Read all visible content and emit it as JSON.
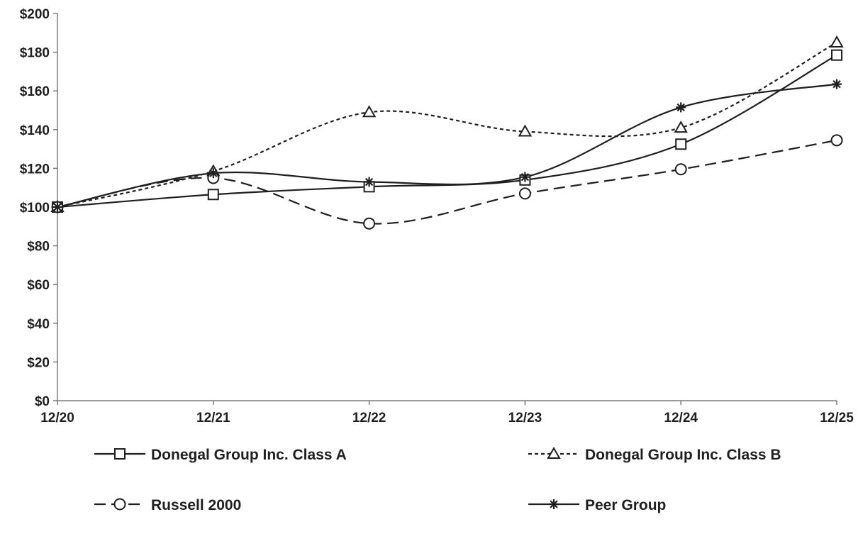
{
  "chart_data": {
    "type": "line",
    "categories": [
      "12/20",
      "12/21",
      "12/22",
      "12/23",
      "12/24",
      "12/25"
    ],
    "ylim": [
      0,
      200
    ],
    "yticks": [
      0,
      20,
      40,
      60,
      80,
      100,
      120,
      140,
      160,
      180,
      200
    ],
    "ytick_labels": [
      "$0",
      "$20",
      "$40",
      "$60",
      "$80",
      "$100",
      "$120",
      "$140",
      "$160",
      "$180",
      "$200"
    ],
    "title": "",
    "xlabel": "",
    "ylabel": "",
    "grid": false,
    "legend_position": "bottom",
    "series": [
      {
        "name": "Donegal Group Inc. Class A",
        "values": [
          100,
          106.5,
          110.5,
          114,
          132.5,
          178.5
        ],
        "marker": "square",
        "line_style": "solid",
        "color": "#1f1f1f"
      },
      {
        "name": "Donegal Group Inc. Class B",
        "values": [
          100,
          118.5,
          149,
          139,
          141,
          185
        ],
        "marker": "triangle",
        "line_style": "dotted",
        "color": "#1f1f1f"
      },
      {
        "name": "Russell 2000",
        "values": [
          100,
          115,
          91.5,
          107,
          119.5,
          134.5
        ],
        "marker": "circle",
        "line_style": "dashed",
        "color": "#1f1f1f"
      },
      {
        "name": "Peer Group",
        "values": [
          100,
          117.5,
          113,
          115.5,
          151.5,
          163.5
        ],
        "marker": "asterisk",
        "line_style": "solid",
        "color": "#1f1f1f"
      }
    ]
  }
}
